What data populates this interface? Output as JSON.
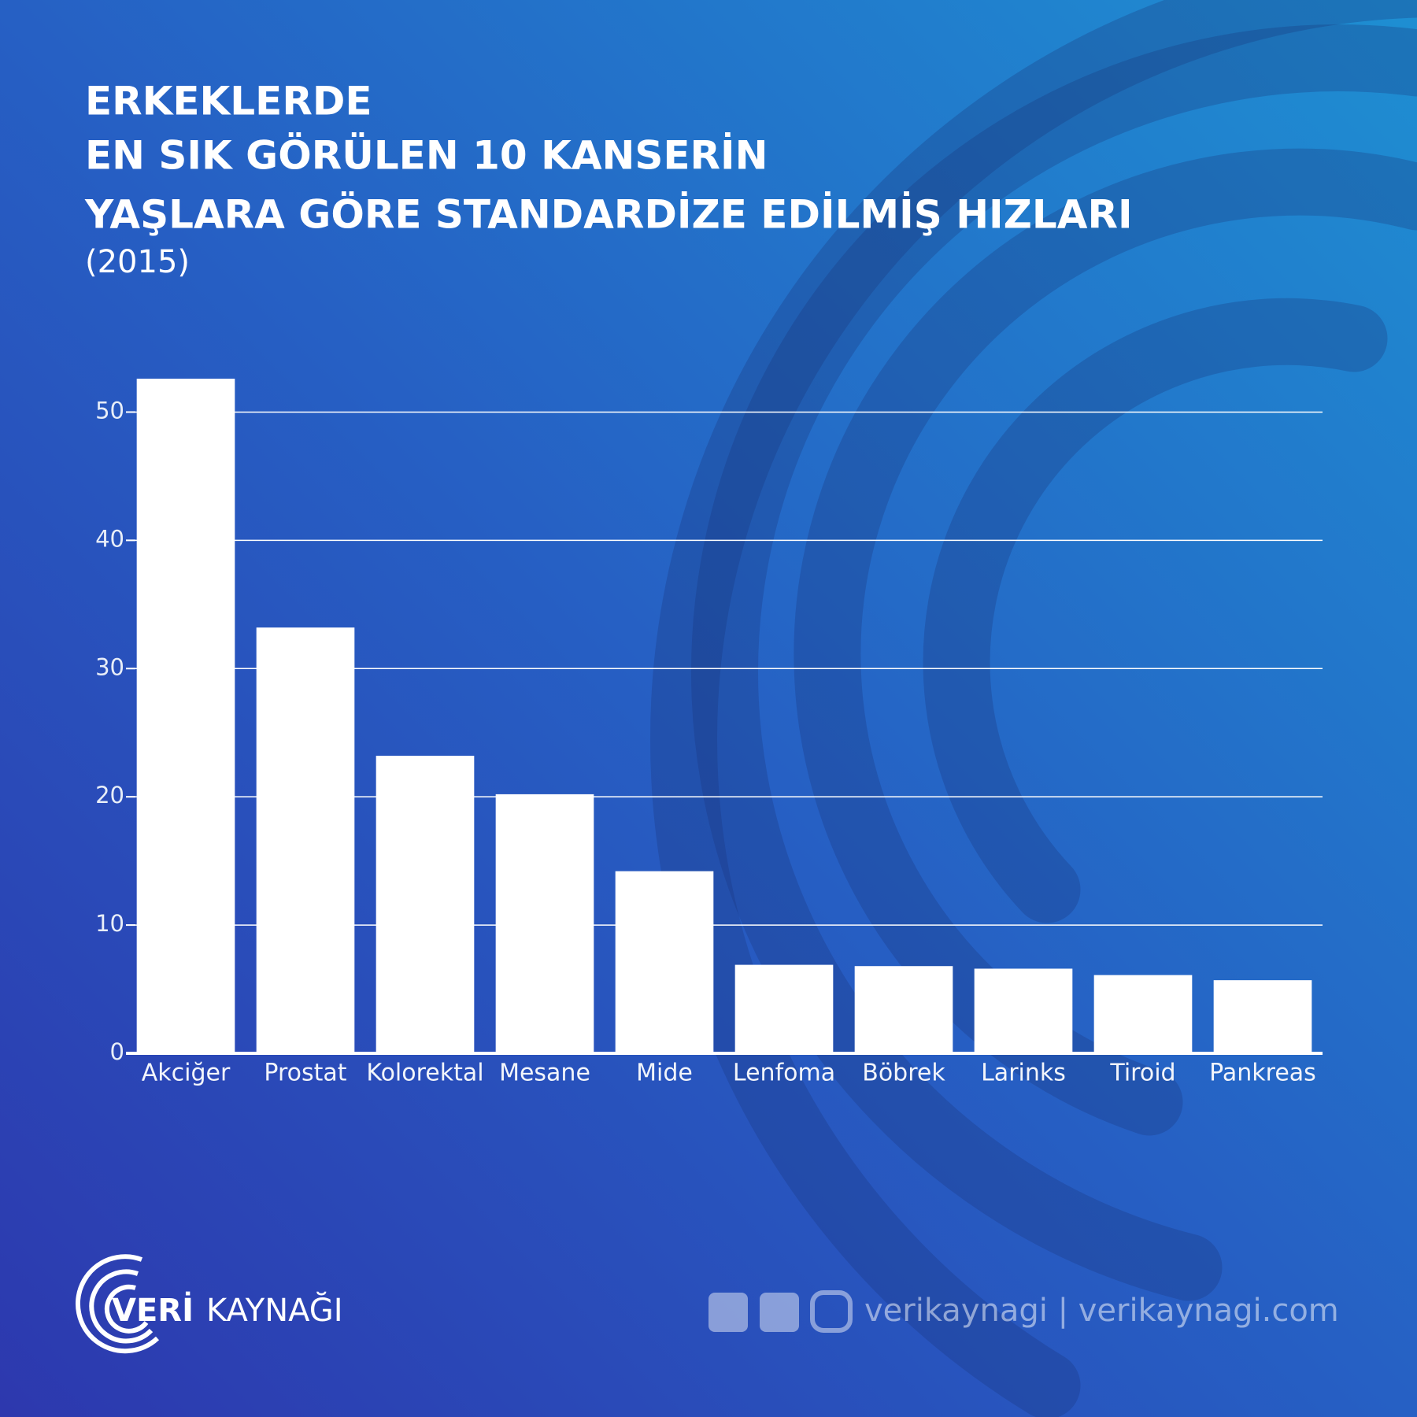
{
  "chart_data": {
    "type": "bar",
    "title": [
      "ERKEKLERDE",
      "EN SIK GÖRÜLEN 10 KANSERİN",
      "YAŞLARA GÖRE STANDARDİZE EDİLMİŞ HIZLARI"
    ],
    "subtitle": "(2015)",
    "categories": [
      "Akciğer",
      "Prostat",
      "Kolorektal",
      "Mesane",
      "Mide",
      "Lenfoma",
      "Böbrek",
      "Larinks",
      "Tiroid",
      "Pankreas"
    ],
    "values": [
      52.6,
      33.2,
      23.2,
      20.2,
      14.2,
      6.9,
      6.8,
      6.6,
      6.1,
      5.7
    ],
    "color": "#ffffff",
    "ylim": [
      0,
      55
    ],
    "yticks": [
      0,
      10,
      20,
      30,
      40,
      50
    ],
    "grid": true
  },
  "footer": {
    "brand_bold": "VERİ",
    "brand": "KAYNAĞI",
    "social": "verikaynagi | verikaynagi.com"
  }
}
